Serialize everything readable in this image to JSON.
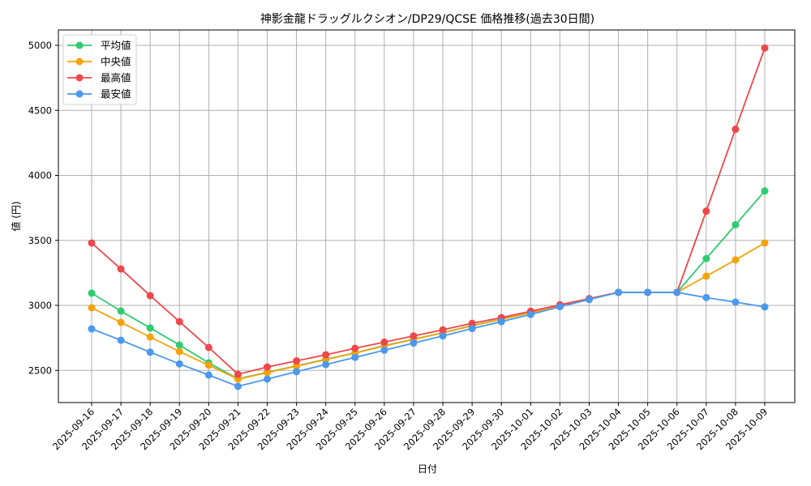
{
  "chart_data": {
    "type": "line",
    "title": "神影金龍ドラッグルクシオン/DP29/QCSE 価格推移(過去30日間)",
    "xlabel": "日付",
    "ylabel": "値 (円)",
    "ylim": [
      2250,
      5100
    ],
    "yticks": [
      2500,
      3000,
      3500,
      4000,
      4500,
      5000
    ],
    "grid": true,
    "legend_position": "upper left",
    "categories": [
      "2025-09-16",
      "2025-09-17",
      "2025-09-18",
      "2025-09-19",
      "2025-09-20",
      "2025-09-21",
      "2025-09-22",
      "2025-09-23",
      "2025-09-24",
      "2025-09-25",
      "2025-09-26",
      "2025-09-27",
      "2025-09-28",
      "2025-09-29",
      "2025-09-30",
      "2025-10-01",
      "2025-10-02",
      "2025-10-03",
      "2025-10-04",
      "2025-10-05",
      "2025-10-06",
      "2025-10-07",
      "2025-10-08",
      "2025-10-09"
    ],
    "series": [
      {
        "name": "平均値",
        "color": "#2ecc71",
        "values": [
          3094,
          2956,
          2826,
          2695,
          2558,
          2435,
          2485,
          2535,
          2585,
          2635,
          2690,
          2740,
          2790,
          2845,
          2895,
          2945,
          3000,
          3050,
          3100,
          3100,
          3100,
          3360,
          3620,
          3880
        ]
      },
      {
        "name": "中央値",
        "color": "#f5a20a",
        "values": [
          2982,
          2869,
          2757,
          2645,
          2539,
          2433,
          2483,
          2533,
          2583,
          2633,
          2688,
          2738,
          2788,
          2843,
          2893,
          2943,
          2998,
          3048,
          3100,
          3100,
          3100,
          3225,
          3350,
          3480
        ]
      },
      {
        "name": "最高値",
        "color": "#f0474a",
        "values": [
          3480,
          3280,
          3075,
          2875,
          2676,
          2470,
          2526,
          2573,
          2620,
          2670,
          2717,
          2765,
          2812,
          2862,
          2906,
          2955,
          3005,
          3052,
          3100,
          3100,
          3100,
          3725,
          4355,
          4980
        ]
      },
      {
        "name": "最安値",
        "color": "#4a98f0",
        "values": [
          2819,
          2732,
          2640,
          2550,
          2464,
          2377,
          2433,
          2490,
          2545,
          2600,
          2655,
          2710,
          2765,
          2822,
          2875,
          2930,
          2990,
          3045,
          3100,
          3100,
          3100,
          3060,
          3025,
          2988
        ]
      }
    ]
  }
}
